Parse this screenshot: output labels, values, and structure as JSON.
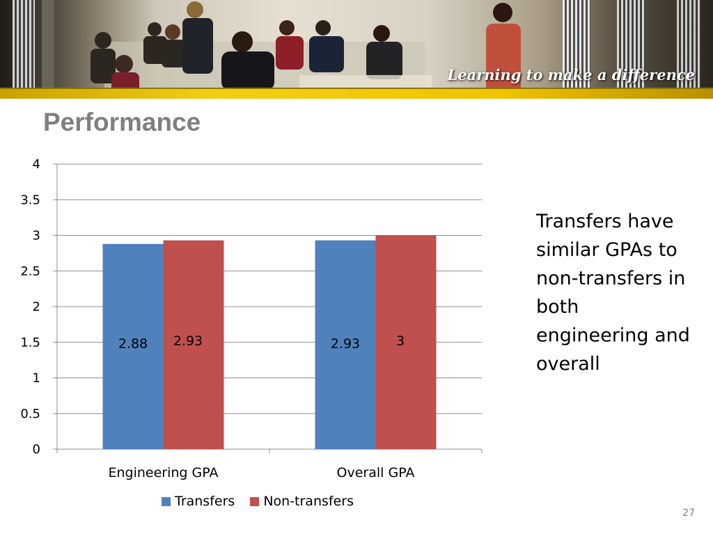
{
  "banner": {
    "tagline": "Learning to make a difference"
  },
  "slide": {
    "title": "Performance",
    "note": "Transfers have similar GPAs to non-transfers in both engineering and overall",
    "page_number": "27"
  },
  "chart_data": {
    "type": "bar",
    "categories": [
      "Engineering GPA",
      "Overall GPA"
    ],
    "series": [
      {
        "name": "Transfers",
        "values": [
          2.88,
          2.93
        ],
        "labels": [
          "2.88",
          "2.93"
        ],
        "color": "#4f81bd"
      },
      {
        "name": "Non-transfers",
        "values": [
          2.93,
          3
        ],
        "labels": [
          "2.93",
          "3"
        ],
        "color": "#c0504d"
      }
    ],
    "ylim": [
      0,
      4
    ],
    "yticks": [
      "0",
      "0.5",
      "1",
      "1.5",
      "2",
      "2.5",
      "3",
      "3.5",
      "4"
    ],
    "ytick_values": [
      0,
      0.5,
      1,
      1.5,
      2,
      2.5,
      3,
      3.5,
      4
    ],
    "grid": true,
    "legend": "bottom"
  }
}
